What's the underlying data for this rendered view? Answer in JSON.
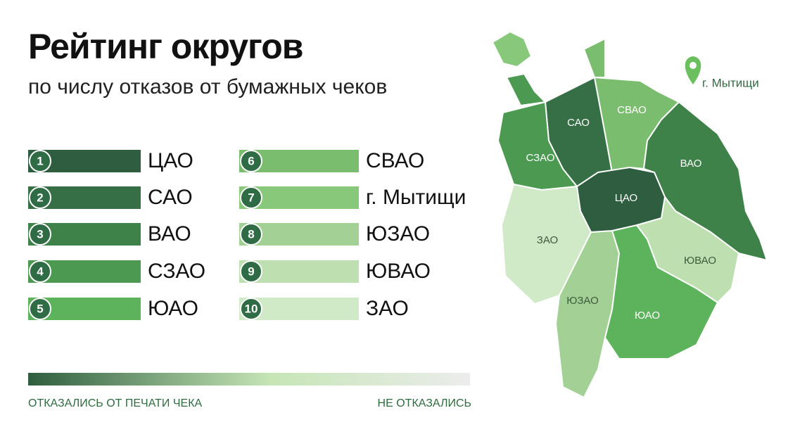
{
  "header": {
    "title": "Рейтинг округов",
    "subtitle": "по числу отказов от бумажных чеков"
  },
  "ranking": {
    "items": [
      {
        "rank": 1,
        "name": "ЦАО",
        "color": "#2e5e3f"
      },
      {
        "rank": 2,
        "name": "САО",
        "color": "#366f45"
      },
      {
        "rank": 3,
        "name": "ВАО",
        "color": "#3f8249"
      },
      {
        "rank": 4,
        "name": "СЗАО",
        "color": "#4c9a51"
      },
      {
        "rank": 5,
        "name": "ЮАО",
        "color": "#5db35b"
      },
      {
        "rank": 6,
        "name": "СВАО",
        "color": "#7bbd6f"
      },
      {
        "rank": 7,
        "name": "г. Мытищи",
        "color": "#88c87a"
      },
      {
        "rank": 8,
        "name": "ЮЗАО",
        "color": "#a3d195"
      },
      {
        "rank": 9,
        "name": "ЮВАО",
        "color": "#bee0b1"
      },
      {
        "rank": 10,
        "name": "ЗАО",
        "color": "#d0e9c6"
      }
    ]
  },
  "scale": {
    "left_label": "ОТКАЗАЛИСЬ ОТ ПЕЧАТИ ЧЕКА",
    "right_label": "НЕ ОТКАЗАЛИСЬ"
  },
  "map": {
    "pin_label": "г. Мытищи"
  }
}
